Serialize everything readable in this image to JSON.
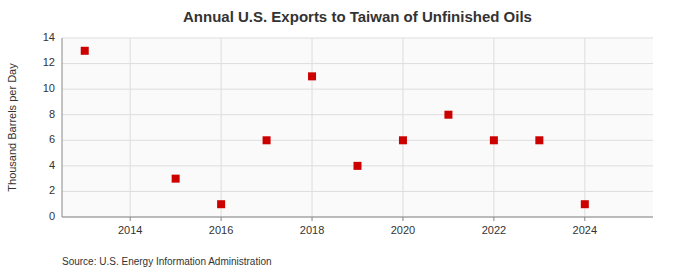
{
  "chart_data": {
    "type": "scatter",
    "title": "Annual U.S. Exports to Taiwan of Unfinished Oils",
    "ylabel": "Thousand Barrels per Day",
    "source": "Source: U.S. Energy Information Administration",
    "x": [
      2013,
      2015,
      2016,
      2017,
      2018,
      2019,
      2020,
      2021,
      2022,
      2023,
      2024
    ],
    "values": [
      13,
      3,
      1,
      6,
      11,
      4,
      6,
      8,
      6,
      6,
      1
    ],
    "xlim": [
      2012.5,
      2025.5
    ],
    "ylim": [
      0,
      14
    ],
    "xticks": [
      2014,
      2016,
      2018,
      2020,
      2022,
      2024
    ],
    "yticks": [
      0,
      2,
      4,
      6,
      8,
      10,
      12,
      14
    ],
    "color": "#cc0000",
    "marker": "square",
    "grid": true
  }
}
